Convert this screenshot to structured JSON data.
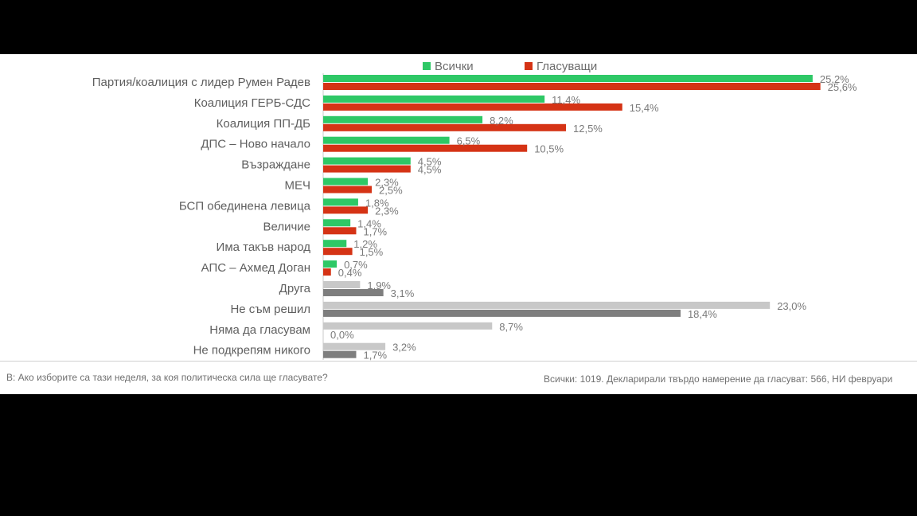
{
  "colors": {
    "all": "#2ec866",
    "voters": "#d53315",
    "other_all": "#c8c8c8",
    "other_voters": "#7e7e7e"
  },
  "legend": {
    "all_label": "Всички",
    "voters_label": "Гласуващи"
  },
  "footnote": {
    "question": "В: Ако изборите са тази неделя, за коя политическа сила ще гласувате?",
    "sample": "Всички: 1019. Декларирали твърдо намерение да гласуват: 566, НИ февруари"
  },
  "chart_data": {
    "type": "bar",
    "orientation": "horizontal",
    "categories": [
      "Партия/коалиция с лидер Румен Радев",
      "Коалиция ГЕРБ-СДС",
      "Коалиция ПП-ДБ",
      "ДПС – Ново начало",
      "Възраждане",
      "МЕЧ",
      "БСП обединена левица",
      "Величие",
      "Има такъв народ",
      "АПС – Ахмед Доган",
      "Друга",
      "Не съм решил",
      "Няма да гласувам",
      "Не подкрепям никого"
    ],
    "series": [
      {
        "name": "Всички",
        "values": [
          25.2,
          11.4,
          8.2,
          6.5,
          4.5,
          2.3,
          1.8,
          1.4,
          1.2,
          0.7,
          1.9,
          23.0,
          8.7,
          3.2
        ],
        "labels": [
          "25,2%",
          "11,4%",
          "8,2%",
          "6,5%",
          "4,5%",
          "2,3%",
          "1,8%",
          "1,4%",
          "1,2%",
          "0,7%",
          "1,9%",
          "23,0%",
          "8,7%",
          "3,2%"
        ]
      },
      {
        "name": "Гласуващи",
        "values": [
          25.6,
          15.4,
          12.5,
          10.5,
          4.5,
          2.5,
          2.3,
          1.7,
          1.5,
          0.4,
          3.1,
          18.4,
          0.0,
          1.7
        ],
        "labels": [
          "25,6%",
          "15,4%",
          "12,5%",
          "10,5%",
          "4,5%",
          "2,5%",
          "2,3%",
          "1,7%",
          "1,5%",
          "0,4%",
          "3,1%",
          "18,4%",
          "0,0%",
          "1,7%"
        ]
      }
    ],
    "grey_from_index": 10,
    "legend_position": "top",
    "grid": false
  }
}
